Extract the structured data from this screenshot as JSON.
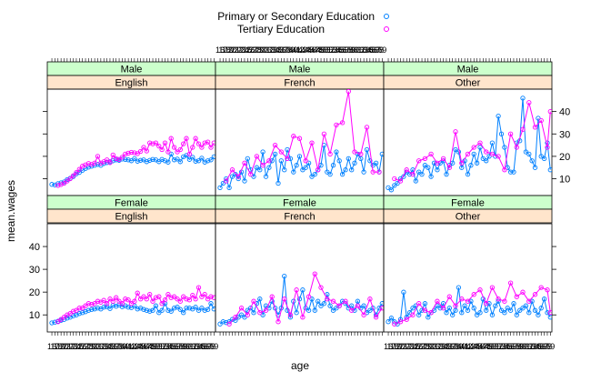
{
  "chart_data": {
    "type": "line",
    "layout": "lattice 3x2 panels, shared x scale, relation free across rows",
    "xlabel": "age",
    "ylabel": "mean.wages",
    "ylim": [
      2.5,
      50
    ],
    "yticks": [
      10,
      20,
      30,
      40
    ],
    "xlim": [
      14.5,
      69.5
    ],
    "xtick_values": [
      16,
      17,
      18,
      19,
      20,
      21,
      22,
      23,
      24,
      25,
      26,
      27,
      28,
      29,
      30,
      31,
      32,
      33,
      34,
      35,
      36,
      37,
      38,
      39,
      40,
      41,
      42,
      43,
      44,
      45,
      46,
      47,
      48,
      49,
      50,
      51,
      52,
      53,
      54,
      55,
      56,
      57,
      58,
      59,
      60,
      61,
      62,
      63,
      64,
      65,
      66,
      67,
      68,
      69
    ],
    "legend": {
      "placement": "top",
      "entries": [
        {
          "name": "Primary or Secondary Education",
          "color": "#0080ff"
        },
        {
          "name": "Tertiary Education",
          "color": "#ff00ff"
        }
      ]
    },
    "colors": {
      "strip_sex": "#ccffcc",
      "strip_language": "#ffe5cc",
      "primary": "#0080ff",
      "tertiary": "#ff00ff"
    },
    "panels": [
      {
        "sex": "Male",
        "language": "English",
        "row": 0,
        "col": 0,
        "primary_x": [
          16,
          17,
          18,
          19,
          20,
          21,
          22,
          23,
          24,
          25,
          26,
          27,
          28,
          29,
          30,
          31,
          32,
          33,
          34,
          35,
          36,
          37,
          38,
          39,
          40,
          41,
          42,
          43,
          44,
          45,
          46,
          47,
          48,
          49,
          50,
          51,
          52,
          53,
          54,
          55,
          56,
          57,
          58,
          59,
          60,
          61,
          62,
          63,
          64,
          65,
          66,
          67,
          68,
          69
        ],
        "primary_y": [
          7.5,
          7.2,
          7.8,
          8.2,
          8.6,
          9.6,
          10.2,
          11.0,
          12.2,
          12.8,
          13.8,
          14.6,
          15.2,
          15.6,
          16.0,
          16.4,
          16.0,
          16.8,
          17.2,
          17.6,
          18.0,
          18.4,
          18.2,
          18.8,
          18.6,
          18.4,
          18.0,
          19.0,
          17.8,
          18.2,
          18.4,
          17.6,
          18.2,
          18.6,
          18.4,
          17.6,
          18.6,
          18.0,
          17.4,
          21.0,
          18.4,
          18.8,
          17.6,
          19.8,
          20.4,
          18.6,
          19.6,
          17.8,
          18.0,
          19.2,
          17.4,
          18.0,
          18.4,
          19.8
        ],
        "tertiary_x": [
          18,
          19,
          20,
          21,
          22,
          23,
          24,
          25,
          26,
          27,
          28,
          29,
          30,
          31,
          32,
          33,
          34,
          35,
          36,
          37,
          38,
          39,
          40,
          41,
          42,
          43,
          44,
          45,
          46,
          47,
          48,
          49,
          50,
          51,
          52,
          53,
          54,
          55,
          56,
          57,
          58,
          59,
          60,
          61,
          62,
          63,
          64,
          65,
          66,
          67,
          68,
          69
        ],
        "tertiary_y": [
          7.0,
          7.4,
          8.0,
          9.0,
          10.0,
          11.4,
          12.8,
          14.2,
          15.6,
          16.2,
          16.8,
          16.4,
          17.0,
          20.0,
          17.0,
          17.6,
          18.4,
          17.2,
          20.6,
          19.0,
          18.6,
          19.6,
          21.0,
          21.4,
          21.8,
          21.6,
          21.2,
          22.2,
          24.0,
          22.4,
          26.0,
          25.6,
          26.0,
          24.6,
          23.0,
          26.0,
          22.0,
          28.0,
          24.0,
          22.0,
          23.0,
          25.6,
          28.0,
          21.0,
          24.0,
          28.0,
          25.6,
          24.0,
          26.0,
          26.4,
          24.0,
          26.0
        ]
      },
      {
        "sex": "Male",
        "language": "French",
        "row": 0,
        "col": 1,
        "primary_x": [
          16,
          17,
          18,
          19,
          20,
          21,
          22,
          23,
          24,
          25,
          26,
          27,
          28,
          29,
          30,
          31,
          32,
          33,
          34,
          35,
          36,
          37,
          38,
          39,
          40,
          41,
          42,
          43,
          44,
          45,
          46,
          47,
          48,
          49,
          50,
          51,
          52,
          53,
          54,
          55,
          56,
          57,
          58,
          59,
          60,
          61,
          62,
          63,
          64,
          65,
          66,
          67,
          68,
          69
        ],
        "primary_y": [
          6.0,
          8.0,
          10.0,
          6.0,
          11.0,
          12.0,
          10.0,
          13.0,
          9.0,
          19.0,
          14.0,
          11.0,
          15.0,
          14.0,
          22.0,
          11.0,
          15.0,
          18.0,
          21.0,
          8.0,
          18.0,
          14.0,
          23.0,
          19.0,
          13.0,
          16.0,
          20.0,
          14.0,
          15.0,
          17.0,
          11.0,
          12.0,
          14.0,
          16.0,
          25.0,
          13.0,
          12.0,
          16.0,
          22.0,
          18.0,
          12.0,
          14.0,
          19.0,
          14.0,
          17.0,
          21.0,
          19.0,
          13.0,
          23.0,
          18.0,
          16.0,
          17.0,
          13.0,
          21.0
        ],
        "tertiary_x": [
          18,
          20,
          22,
          24,
          26,
          28,
          30,
          32,
          34,
          36,
          38,
          40,
          42,
          44,
          46,
          48,
          50,
          52,
          54,
          56,
          58,
          60,
          62,
          64,
          66,
          68
        ],
        "tertiary_y": [
          9.0,
          14.0,
          11.0,
          17.0,
          12.0,
          20.0,
          16.0,
          18.0,
          25.0,
          22.0,
          19.0,
          29.0,
          28.0,
          18.0,
          26.0,
          14.0,
          30.0,
          21.0,
          34.0,
          35.0,
          49.0,
          22.0,
          21.0,
          33.0,
          13.0,
          13.0
        ]
      },
      {
        "sex": "Male",
        "language": "Other",
        "row": 0,
        "col": 2,
        "primary_x": [
          16,
          17,
          18,
          19,
          20,
          21,
          22,
          23,
          24,
          25,
          26,
          27,
          28,
          29,
          30,
          31,
          32,
          33,
          34,
          35,
          36,
          37,
          38,
          39,
          40,
          41,
          42,
          43,
          44,
          45,
          46,
          47,
          48,
          49,
          50,
          51,
          52,
          53,
          54,
          55,
          56,
          57,
          58,
          59,
          60,
          61,
          62,
          63,
          64,
          65,
          66,
          67,
          68,
          69
        ],
        "primary_y": [
          6.0,
          5.0,
          7.0,
          8.0,
          10.0,
          11.0,
          13.0,
          12.0,
          14.0,
          9.0,
          13.0,
          12.0,
          16.0,
          15.0,
          11.0,
          17.0,
          14.0,
          17.0,
          18.0,
          12.0,
          16.0,
          17.0,
          23.0,
          22.0,
          15.0,
          18.0,
          12.0,
          16.0,
          21.0,
          17.0,
          24.0,
          19.0,
          18.0,
          20.0,
          26.0,
          20.0,
          38.0,
          30.0,
          24.0,
          15.0,
          13.0,
          13.0,
          26.0,
          27.0,
          46.0,
          22.0,
          21.0,
          18.0,
          15.0,
          37.0,
          20.0,
          19.0,
          26.0,
          14.0
        ],
        "tertiary_x": [
          18,
          20,
          22,
          24,
          26,
          28,
          30,
          32,
          34,
          36,
          38,
          40,
          42,
          44,
          46,
          48,
          50,
          52,
          54,
          56,
          58,
          60,
          62,
          64,
          66,
          68,
          69
        ],
        "tertiary_y": [
          10.0,
          9.0,
          14.0,
          12.0,
          18.0,
          19.0,
          21.0,
          17.0,
          19.0,
          15.0,
          31.0,
          17.0,
          21.0,
          24.0,
          26.0,
          22.0,
          21.0,
          20.0,
          14.0,
          30.0,
          24.0,
          32.0,
          44.0,
          33.0,
          36.0,
          24.0,
          40.0
        ]
      },
      {
        "sex": "Female",
        "language": "English",
        "row": 1,
        "col": 0,
        "primary_x": [
          16,
          17,
          18,
          19,
          20,
          21,
          22,
          23,
          24,
          25,
          26,
          27,
          28,
          29,
          30,
          31,
          32,
          33,
          34,
          35,
          36,
          37,
          38,
          39,
          40,
          41,
          42,
          43,
          44,
          45,
          46,
          47,
          48,
          49,
          50,
          51,
          52,
          53,
          54,
          55,
          56,
          57,
          58,
          59,
          60,
          61,
          62,
          63,
          64,
          65,
          66,
          67,
          68,
          69
        ],
        "primary_y": [
          6.5,
          6.8,
          7.2,
          7.6,
          8.0,
          8.6,
          9.0,
          9.6,
          10.0,
          10.6,
          11.0,
          11.4,
          12.0,
          12.4,
          12.6,
          13.0,
          12.6,
          13.4,
          13.6,
          12.8,
          14.2,
          13.8,
          14.4,
          13.6,
          14.0,
          13.4,
          13.2,
          14.0,
          12.6,
          13.0,
          12.4,
          12.0,
          11.6,
          12.0,
          14.0,
          11.0,
          12.0,
          15.0,
          12.0,
          11.6,
          13.0,
          13.4,
          12.4,
          11.0,
          13.0,
          13.0,
          12.6,
          13.4,
          12.0,
          13.0,
          12.0,
          12.4,
          15.0,
          12.6
        ],
        "tertiary_x": [
          18,
          19,
          20,
          21,
          22,
          23,
          24,
          25,
          26,
          27,
          28,
          29,
          30,
          31,
          32,
          33,
          34,
          35,
          36,
          37,
          38,
          39,
          40,
          41,
          42,
          43,
          44,
          45,
          46,
          47,
          48,
          49,
          50,
          51,
          52,
          53,
          54,
          55,
          56,
          57,
          58,
          59,
          60,
          61,
          62,
          63,
          64,
          65,
          66,
          67,
          68,
          69
        ],
        "tertiary_y": [
          7.0,
          8.0,
          9.0,
          10.0,
          10.6,
          11.6,
          12.0,
          13.0,
          13.0,
          14.0,
          15.0,
          14.6,
          15.0,
          16.0,
          15.6,
          16.4,
          15.0,
          17.0,
          16.0,
          17.6,
          16.0,
          15.0,
          17.0,
          16.6,
          15.0,
          16.0,
          19.6,
          17.0,
          18.0,
          17.0,
          19.0,
          16.0,
          17.6,
          18.0,
          15.0,
          16.6,
          19.0,
          17.6,
          18.0,
          17.0,
          16.0,
          18.0,
          17.0,
          16.6,
          18.6,
          17.0,
          22.0,
          18.0,
          19.0,
          17.0,
          18.0,
          17.6
        ]
      },
      {
        "sex": "Female",
        "language": "French",
        "row": 1,
        "col": 1,
        "primary_x": [
          16,
          17,
          18,
          19,
          20,
          21,
          22,
          23,
          24,
          25,
          26,
          27,
          28,
          29,
          30,
          31,
          32,
          33,
          34,
          35,
          36,
          37,
          38,
          39,
          40,
          41,
          42,
          43,
          44,
          45,
          46,
          47,
          48,
          49,
          50,
          51,
          52,
          53,
          54,
          55,
          56,
          57,
          58,
          59,
          60,
          61,
          62,
          63,
          64,
          65,
          66,
          67,
          68,
          69
        ],
        "primary_y": [
          6.0,
          7.0,
          6.6,
          7.0,
          8.0,
          7.6,
          9.0,
          10.0,
          9.0,
          12.0,
          13.0,
          11.0,
          15.0,
          17.0,
          10.0,
          14.0,
          13.0,
          16.0,
          13.0,
          10.0,
          13.0,
          27.0,
          12.0,
          9.0,
          16.0,
          11.0,
          17.0,
          21.0,
          13.0,
          12.0,
          17.0,
          12.0,
          16.0,
          14.0,
          15.0,
          19.0,
          14.0,
          12.0,
          13.0,
          14.0,
          16.0,
          15.0,
          13.0,
          14.0,
          12.0,
          16.0,
          13.0,
          14.0,
          11.0,
          12.0,
          13.0,
          10.0,
          13.0,
          15.0
        ],
        "tertiary_x": [
          19,
          21,
          23,
          25,
          27,
          29,
          31,
          33,
          35,
          37,
          39,
          41,
          43,
          45,
          47,
          49,
          51,
          53,
          55,
          57,
          59,
          61,
          63,
          65,
          67,
          69
        ],
        "tertiary_y": [
          6.0,
          9.0,
          13.0,
          10.0,
          16.0,
          11.0,
          12.0,
          18.0,
          7.0,
          17.0,
          10.0,
          21.0,
          9.0,
          18.0,
          28.0,
          22.0,
          17.0,
          16.0,
          14.0,
          16.0,
          12.0,
          14.0,
          10.0,
          17.0,
          9.0,
          13.0
        ]
      },
      {
        "sex": "Female",
        "language": "Other",
        "row": 1,
        "col": 2,
        "primary_x": [
          16,
          17,
          18,
          19,
          20,
          21,
          22,
          23,
          24,
          25,
          26,
          27,
          28,
          29,
          30,
          31,
          32,
          33,
          34,
          35,
          36,
          37,
          38,
          39,
          40,
          41,
          42,
          43,
          44,
          45,
          46,
          47,
          48,
          49,
          50,
          51,
          52,
          53,
          54,
          55,
          56,
          57,
          58,
          59,
          60,
          61,
          62,
          63,
          64,
          65,
          66,
          67,
          68,
          69
        ],
        "primary_y": [
          7.0,
          8.6,
          7.0,
          6.0,
          8.0,
          20.0,
          9.0,
          11.0,
          13.0,
          14.0,
          10.0,
          12.0,
          15.0,
          9.0,
          11.0,
          12.0,
          14.0,
          13.0,
          15.0,
          11.0,
          13.0,
          10.0,
          12.0,
          22.0,
          11.0,
          14.0,
          12.0,
          16.0,
          13.0,
          10.0,
          11.0,
          17.0,
          12.0,
          15.0,
          10.0,
          14.0,
          16.0,
          12.0,
          11.0,
          13.0,
          12.0,
          15.0,
          10.0,
          12.0,
          13.0,
          14.0,
          11.0,
          16.0,
          12.0,
          10.0,
          13.0,
          17.0,
          11.0,
          9.0
        ],
        "tertiary_x": [
          18,
          20,
          22,
          24,
          26,
          28,
          30,
          32,
          34,
          36,
          38,
          40,
          42,
          44,
          46,
          48,
          50,
          52,
          54,
          56,
          58,
          60,
          62,
          64,
          66,
          68,
          69
        ],
        "tertiary_y": [
          6.0,
          7.0,
          8.0,
          10.0,
          15.0,
          12.0,
          11.0,
          16.0,
          13.0,
          18.0,
          14.0,
          17.0,
          16.0,
          19.0,
          21.0,
          15.0,
          22.0,
          17.0,
          16.0,
          24.0,
          18.0,
          20.0,
          16.0,
          19.0,
          22.0,
          21.0,
          11.0
        ]
      }
    ]
  }
}
